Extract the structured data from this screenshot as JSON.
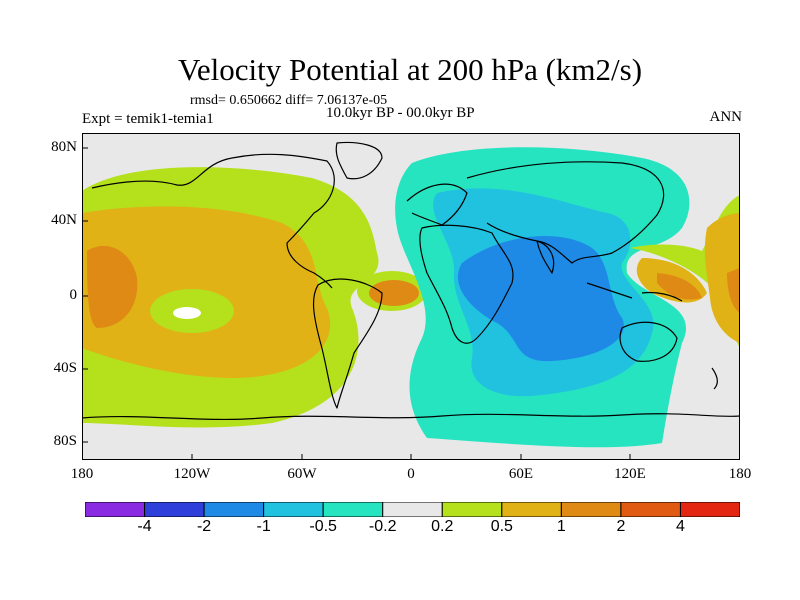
{
  "title": "Velocity Potential at 200 hPa (km2/s)",
  "subtitle_stats": "rmsd= 0.650662 diff= 7.06137e-05",
  "subtitle_period": "10.0kyr BP - 00.0kyr BP",
  "left_label": "Expt = temik1-temia1",
  "right_label": "ANN",
  "y_ticks": [
    "80N",
    "40N",
    "0",
    "40S",
    "80S"
  ],
  "x_ticks": [
    "180",
    "120W",
    "60W",
    "0",
    "60E",
    "120E",
    "180"
  ],
  "colorbar": {
    "colors": [
      "#8a2be2",
      "#2f3fd9",
      "#1e8ae6",
      "#20c2e0",
      "#27e4c0",
      "#e8e8e8",
      "#b5e01c",
      "#e0b216",
      "#e08a16",
      "#e05a14",
      "#e32612"
    ],
    "labels": [
      "-4",
      "-2",
      "-1",
      "-0.5",
      "-0.2",
      "0.2",
      "0.5",
      "1",
      "2",
      "4"
    ]
  },
  "chart_data": {
    "type": "heatmap",
    "title": "Velocity Potential at 200 hPa (km2/s)",
    "projection": "cylindrical equidistant",
    "x_range": [
      -180,
      180
    ],
    "y_range": [
      -90,
      90
    ],
    "levels": [
      -4,
      -2,
      -1,
      -0.5,
      -0.2,
      0.2,
      0.5,
      1,
      2,
      4
    ],
    "regions": [
      {
        "name": "Pacific & Americas",
        "sign": "positive",
        "max_level": 2
      },
      {
        "name": "Africa, Indian Ocean & Asia",
        "sign": "negative",
        "min_level": -2
      },
      {
        "name": "Western Pacific",
        "sign": "positive",
        "max_level": 2
      }
    ]
  }
}
